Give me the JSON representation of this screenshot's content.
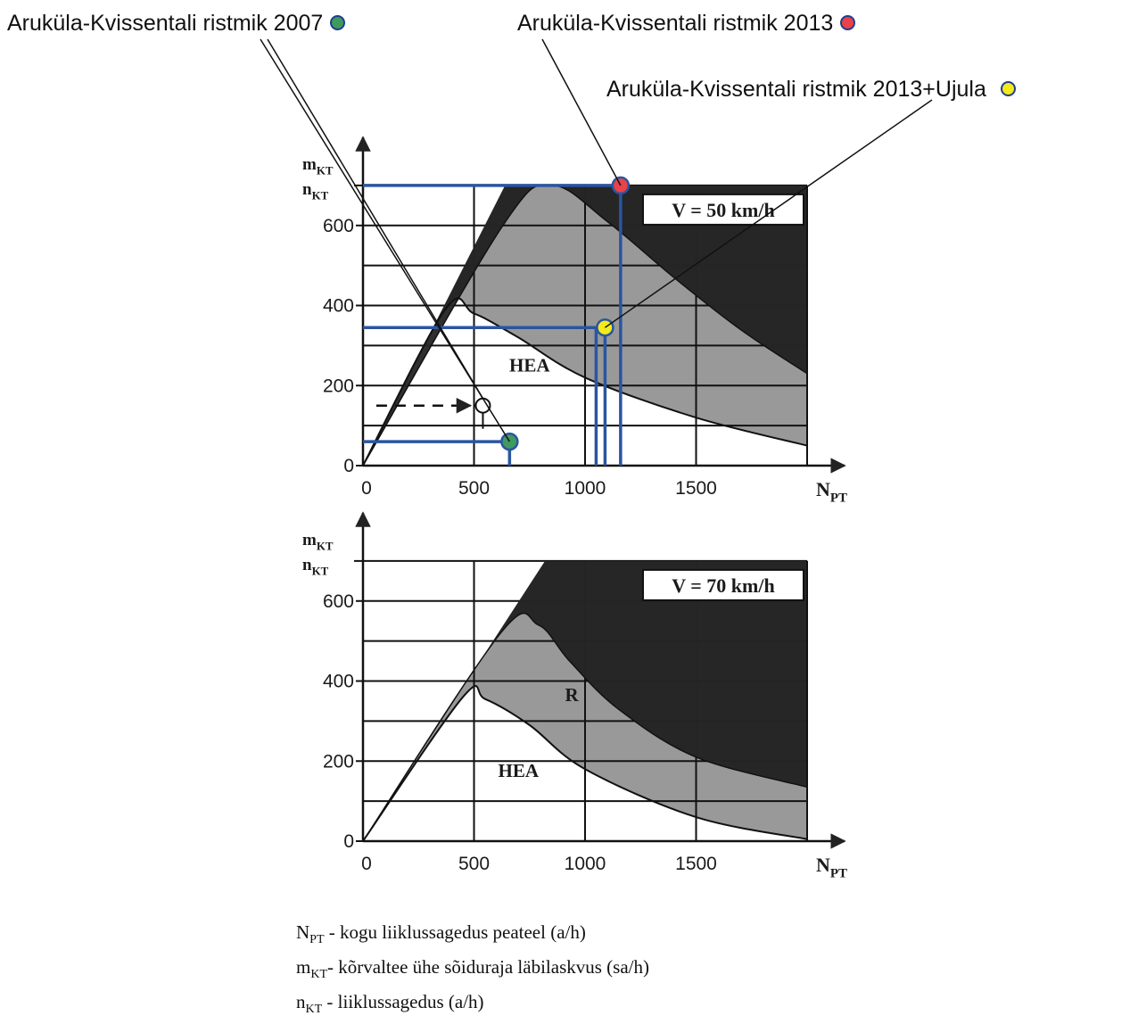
{
  "annotations": [
    {
      "label": "Aruküla-Kvissentali ristmik 2007",
      "marker_color": "#3e9a5e"
    },
    {
      "label": "Aruküla-Kvissentali ristmik 2013",
      "marker_color": "#e8424a"
    },
    {
      "label": "Aruküla-Kvissentali ristmik 2013+Ujula",
      "marker_color": "#f2ea1c"
    }
  ],
  "colors": {
    "dark_zone": "#262626",
    "grey_zone": "#999999",
    "marker_lines": "#2a55a0"
  },
  "legend": [
    {
      "symbol": "N",
      "sub": "PT",
      "text": " - kogu liiklussagedus peateel (a/h)"
    },
    {
      "symbol": "m",
      "sub": "KT",
      "text": "- kõrvaltee ühe sõiduraja läbilaskvus (sa/h)"
    },
    {
      "symbol": "n",
      "sub": "KT",
      "text": " - liiklussagedus (a/h)"
    }
  ],
  "chart_data": [
    {
      "type": "area",
      "speed_label": "V = 50 km/h",
      "xlabel": "N",
      "xlabel_sub": "PT",
      "ylabel_1": "m",
      "ylabel_1_sub": "KT",
      "ylabel_2": "n",
      "ylabel_2_sub": "KT",
      "xticks": [
        "0",
        "500",
        "1000",
        "1500"
      ],
      "xtick_values": [
        0,
        500,
        1000,
        1500
      ],
      "yticks": [
        "0",
        "200",
        "400",
        "600"
      ],
      "ytick_values": [
        0,
        200,
        400,
        600
      ],
      "xlim": [
        0,
        2000
      ],
      "ylim": [
        0,
        780
      ],
      "grid_x": [
        0,
        500,
        1000,
        1500,
        2000
      ],
      "grid_y": [
        0,
        100,
        200,
        300,
        400,
        500,
        600,
        700
      ],
      "zone_labels": [
        {
          "text": "HEA",
          "x": 750,
          "y": 235
        }
      ],
      "boundary_lower": {
        "x": [
          0,
          370,
          500,
          700,
          1000,
          1500,
          2000
        ],
        "y": [
          0,
          390,
          380,
          320,
          220,
          120,
          50
        ]
      },
      "boundary_upper": {
        "x": [
          0,
          630,
          850,
          1100,
          1400,
          1700,
          2000
        ],
        "y": [
          0,
          600,
          700,
          610,
          470,
          340,
          230
        ]
      },
      "boundary_top": {
        "x": [
          0,
          640,
          2000
        ],
        "y": [
          0,
          700,
          700
        ]
      },
      "points": [
        {
          "name": "Aruküla-Kvissentali ristmik 2007",
          "x": 660,
          "y": 60,
          "color": "#3e9a5e"
        },
        {
          "name": "Aruküla-Kvissentali ristmik 2013",
          "x": 1160,
          "y": 700,
          "color": "#e8424a"
        },
        {
          "name": "Aruküla-Kvissentali ristmik 2013+Ujula",
          "x": 1090,
          "y": 345,
          "color": "#f2ea1c"
        }
      ],
      "example_point": {
        "x": 540,
        "y": 150,
        "from_x": 60
      }
    },
    {
      "type": "area",
      "speed_label": "V = 70 km/h",
      "xlabel": "N",
      "xlabel_sub": "PT",
      "ylabel_1": "m",
      "ylabel_1_sub": "KT",
      "ylabel_2": "n",
      "ylabel_2_sub": "KT",
      "xticks": [
        "0",
        "500",
        "1000",
        "1500"
      ],
      "xtick_values": [
        0,
        500,
        1000,
        1500
      ],
      "yticks": [
        "0",
        "200",
        "400",
        "600"
      ],
      "ytick_values": [
        0,
        200,
        400,
        600
      ],
      "xlim": [
        0,
        2000
      ],
      "ylim": [
        0,
        780
      ],
      "grid_x": [
        0,
        500,
        1000,
        1500,
        2000
      ],
      "grid_y": [
        0,
        100,
        200,
        300,
        400,
        500,
        600,
        700
      ],
      "zone_labels": [
        {
          "text": "HEA",
          "x": 700,
          "y": 160
        },
        {
          "text": "R",
          "x": 940,
          "y": 350
        }
      ],
      "boundary_lower": {
        "x": [
          0,
          450,
          550,
          750,
          1000,
          1500,
          2000
        ],
        "y": [
          0,
          360,
          355,
          290,
          180,
          60,
          5
        ]
      },
      "boundary_upper": {
        "x": [
          0,
          620,
          790,
          930,
          1150,
          1500,
          2000
        ],
        "y": [
          0,
          520,
          540,
          450,
          330,
          210,
          135
        ]
      },
      "boundary_top": {
        "x": [
          0,
          820,
          2000
        ],
        "y": [
          0,
          700,
          700
        ]
      }
    }
  ]
}
